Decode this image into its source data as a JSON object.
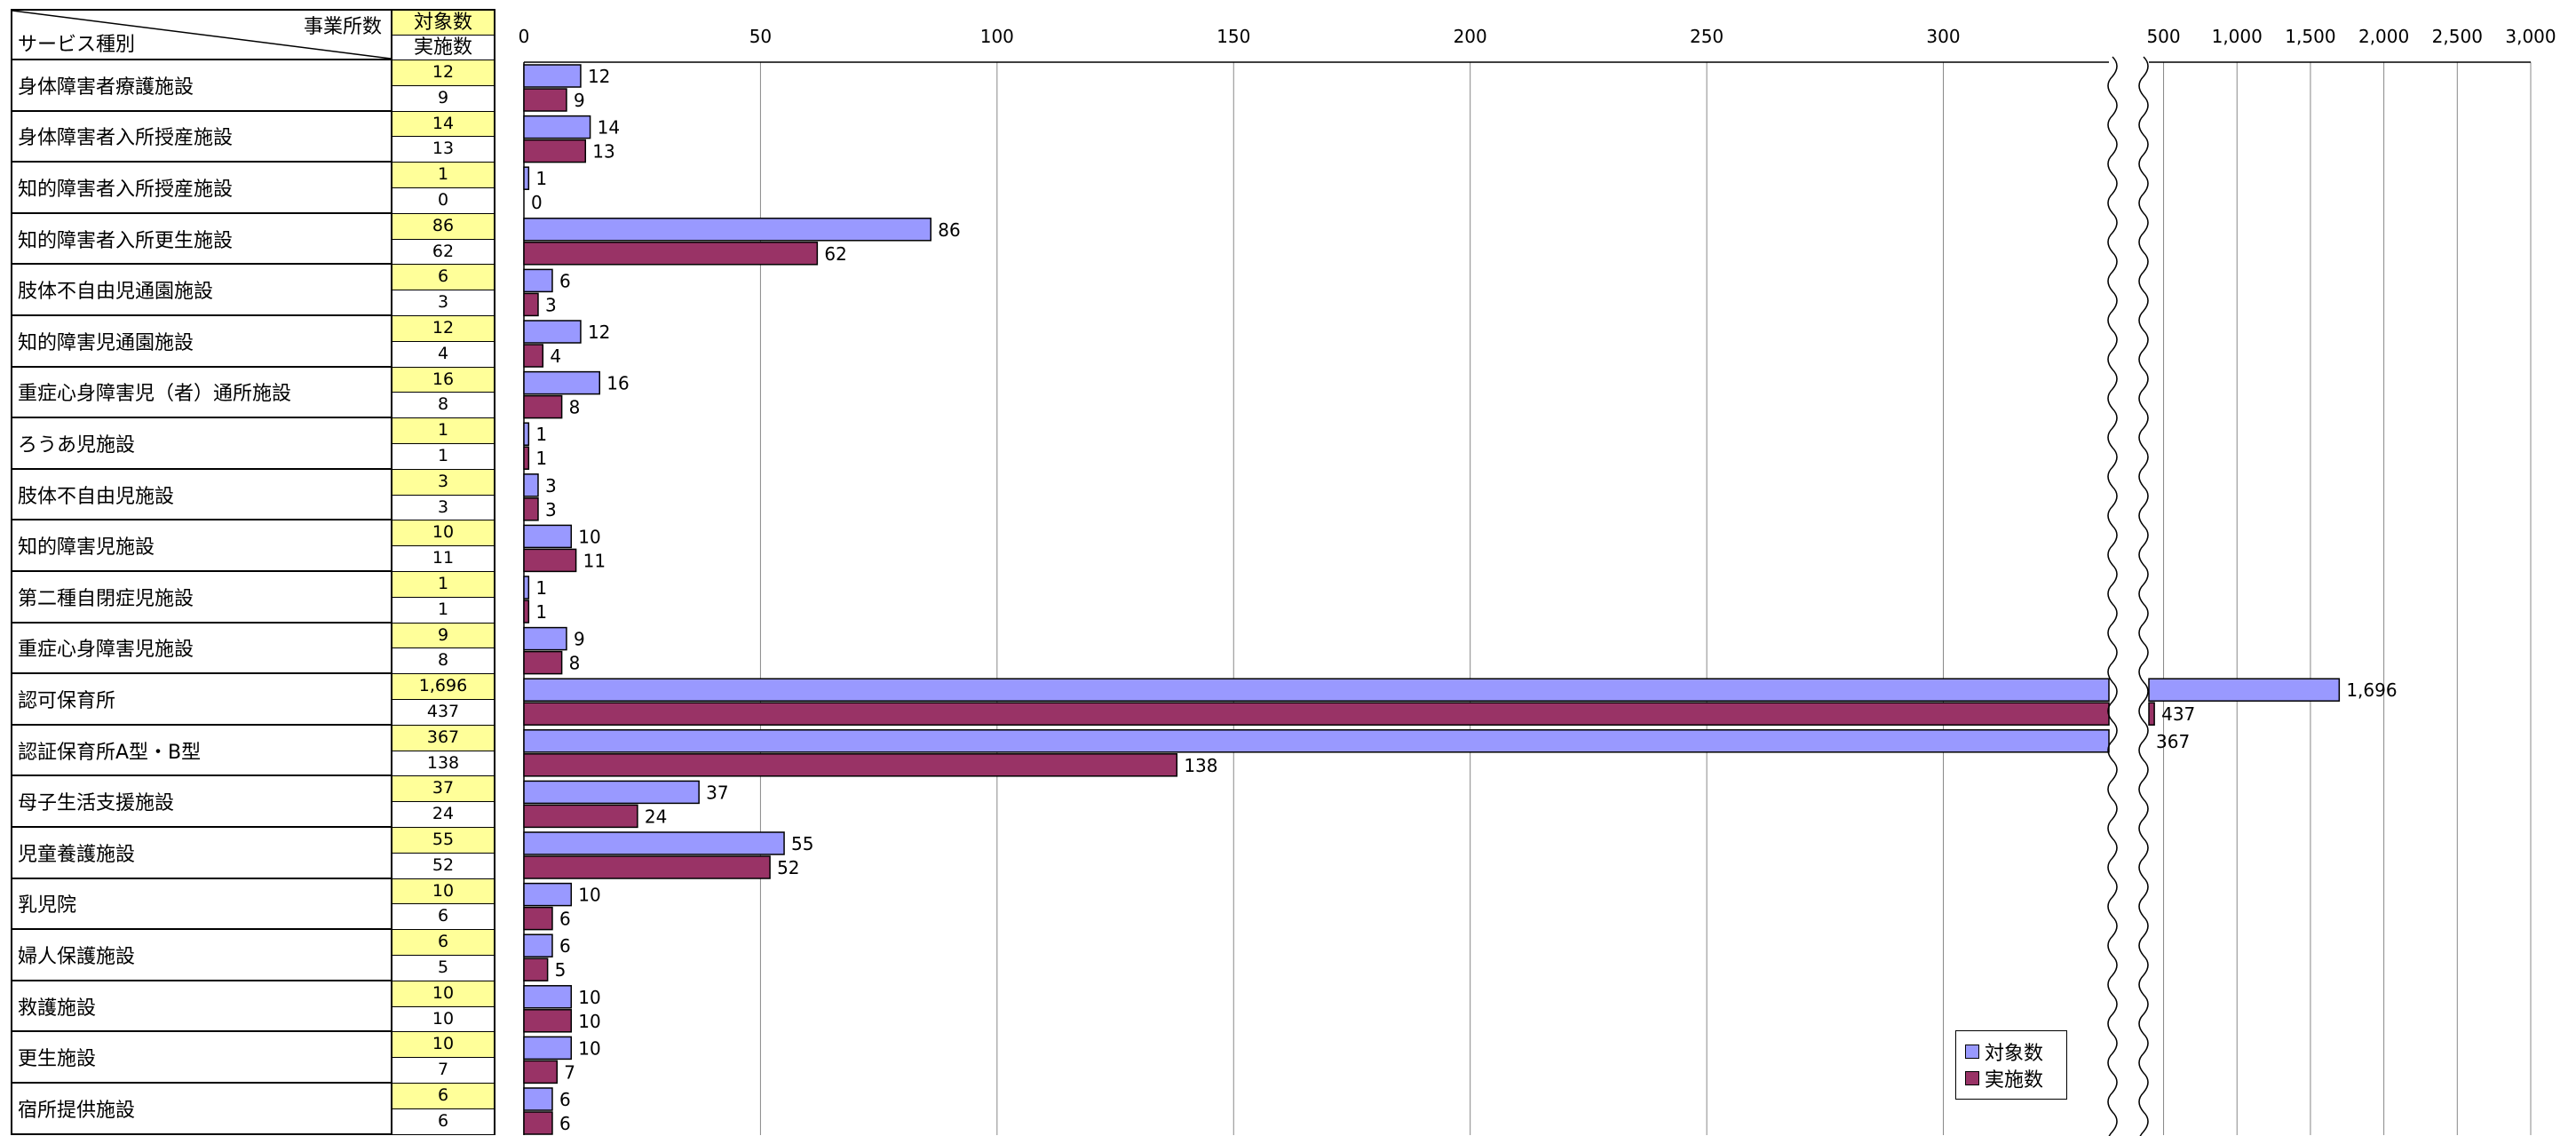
{
  "header": {
    "corner_top": "事業所数",
    "corner_bottom": "サービス種別",
    "col_top": "対象数",
    "col_bottom": "実施数"
  },
  "rows": [
    {
      "name": "身体障害者療護施設",
      "target": "12",
      "done": "9"
    },
    {
      "name": "身体障害者入所授産施設",
      "target": "14",
      "done": "13"
    },
    {
      "name": "知的障害者入所授産施設",
      "target": "1",
      "done": "0"
    },
    {
      "name": "知的障害者入所更生施設",
      "target": "86",
      "done": "62"
    },
    {
      "name": "肢体不自由児通園施設",
      "target": "6",
      "done": "3"
    },
    {
      "name": "知的障害児通園施設",
      "target": "12",
      "done": "4"
    },
    {
      "name": "重症心身障害児（者）通所施設",
      "target": "16",
      "done": "8"
    },
    {
      "name": "ろうあ児施設",
      "target": "1",
      "done": "1"
    },
    {
      "name": "肢体不自由児施設",
      "target": "3",
      "done": "3"
    },
    {
      "name": "知的障害児施設",
      "target": "10",
      "done": "11"
    },
    {
      "name": "第二種自閉症児施設",
      "target": "1",
      "done": "1"
    },
    {
      "name": "重症心身障害児施設",
      "target": "9",
      "done": "8"
    },
    {
      "name": "認可保育所",
      "target": "1,696",
      "done": "437"
    },
    {
      "name": "認証保育所A型・B型",
      "target": "367",
      "done": "138"
    },
    {
      "name": "母子生活支援施設",
      "target": "37",
      "done": "24"
    },
    {
      "name": "児童養護施設",
      "target": "55",
      "done": "52"
    },
    {
      "name": "乳児院",
      "target": "10",
      "done": "6"
    },
    {
      "name": "婦人保護施設",
      "target": "6",
      "done": "5"
    },
    {
      "name": "救護施設",
      "target": "10",
      "done": "10"
    },
    {
      "name": "更生施設",
      "target": "10",
      "done": "7"
    },
    {
      "name": "宿所提供施設",
      "target": "6",
      "done": "6"
    }
  ],
  "chart_data": {
    "type": "bar",
    "orientation": "horizontal",
    "broken_axis": true,
    "categories": [
      "身体障害者療護施設",
      "身体障害者入所授産施設",
      "知的障害者入所授産施設",
      "知的障害者入所更生施設",
      "肢体不自由児通園施設",
      "知的障害児通園施設",
      "重症心身障害児（者）通所施設",
      "ろうあ児施設",
      "肢体不自由児施設",
      "知的障害児施設",
      "第二種自閉症児施設",
      "重症心身障害児施設",
      "認可保育所",
      "認証保育所A型・B型",
      "母子生活支援施設",
      "児童養護施設",
      "乳児院",
      "婦人保護施設",
      "救護施設",
      "更生施設",
      "宿所提供施設"
    ],
    "series": [
      {
        "name": "対象数",
        "color": "#9999ff",
        "values": [
          12,
          14,
          1,
          86,
          6,
          12,
          16,
          1,
          3,
          10,
          1,
          9,
          1696,
          367,
          37,
          55,
          10,
          6,
          10,
          10,
          6
        ]
      },
      {
        "name": "実施数",
        "color": "#993366",
        "values": [
          9,
          13,
          0,
          62,
          3,
          4,
          8,
          1,
          3,
          11,
          1,
          8,
          437,
          138,
          24,
          52,
          6,
          5,
          10,
          7,
          6
        ]
      }
    ],
    "data_labels_target": [
      "12",
      "14",
      "1",
      "86",
      "6",
      "12",
      "16",
      "1",
      "3",
      "10",
      "1",
      "9",
      "1,696",
      "367",
      "37",
      "55",
      "10",
      "6",
      "10",
      "10",
      "6"
    ],
    "data_labels_done": [
      "9",
      "13",
      "0",
      "62",
      "3",
      "4",
      "8",
      "1",
      "3",
      "11",
      "1",
      "8",
      "437",
      "138",
      "24",
      "52",
      "6",
      "5",
      "10",
      "7",
      "6"
    ],
    "axis_low": {
      "range": [
        0,
        335
      ],
      "ticks": [
        0,
        50,
        100,
        150,
        200,
        250,
        300
      ],
      "tick_labels": [
        "0",
        "50",
        "100",
        "150",
        "200",
        "250",
        "300"
      ]
    },
    "axis_high": {
      "range": [
        400,
        3000
      ],
      "ticks": [
        500,
        1000,
        1500,
        2000,
        2500,
        3000
      ],
      "tick_labels": [
        "500",
        "1,000",
        "1,500",
        "2,000",
        "2,500",
        "3,000"
      ]
    },
    "grid": true,
    "legend_position": "bottom-right"
  }
}
